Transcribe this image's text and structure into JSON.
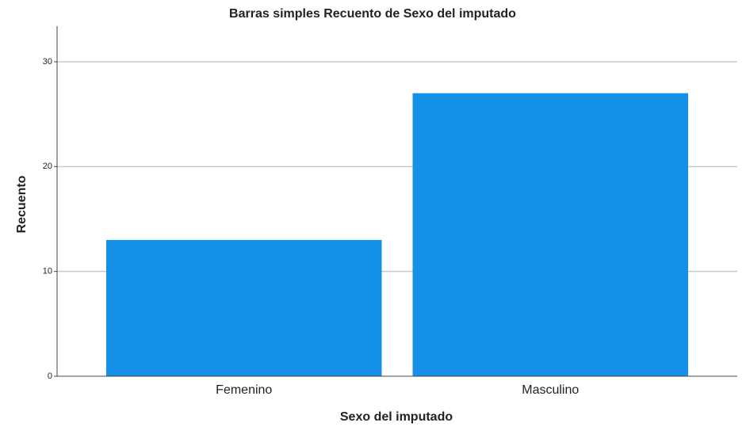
{
  "chart_data": {
    "type": "bar",
    "title": "Barras simples Recuento de Sexo del imputado",
    "x_label": "Sexo del imputado",
    "y_label": "Recuento",
    "categories": [
      "Femenino",
      "Masculino"
    ],
    "values": [
      13,
      27
    ],
    "color": "#1490e6",
    "ylim": [
      0,
      33.4
    ],
    "yticks": [
      0,
      10,
      20,
      30
    ],
    "grid": true
  }
}
